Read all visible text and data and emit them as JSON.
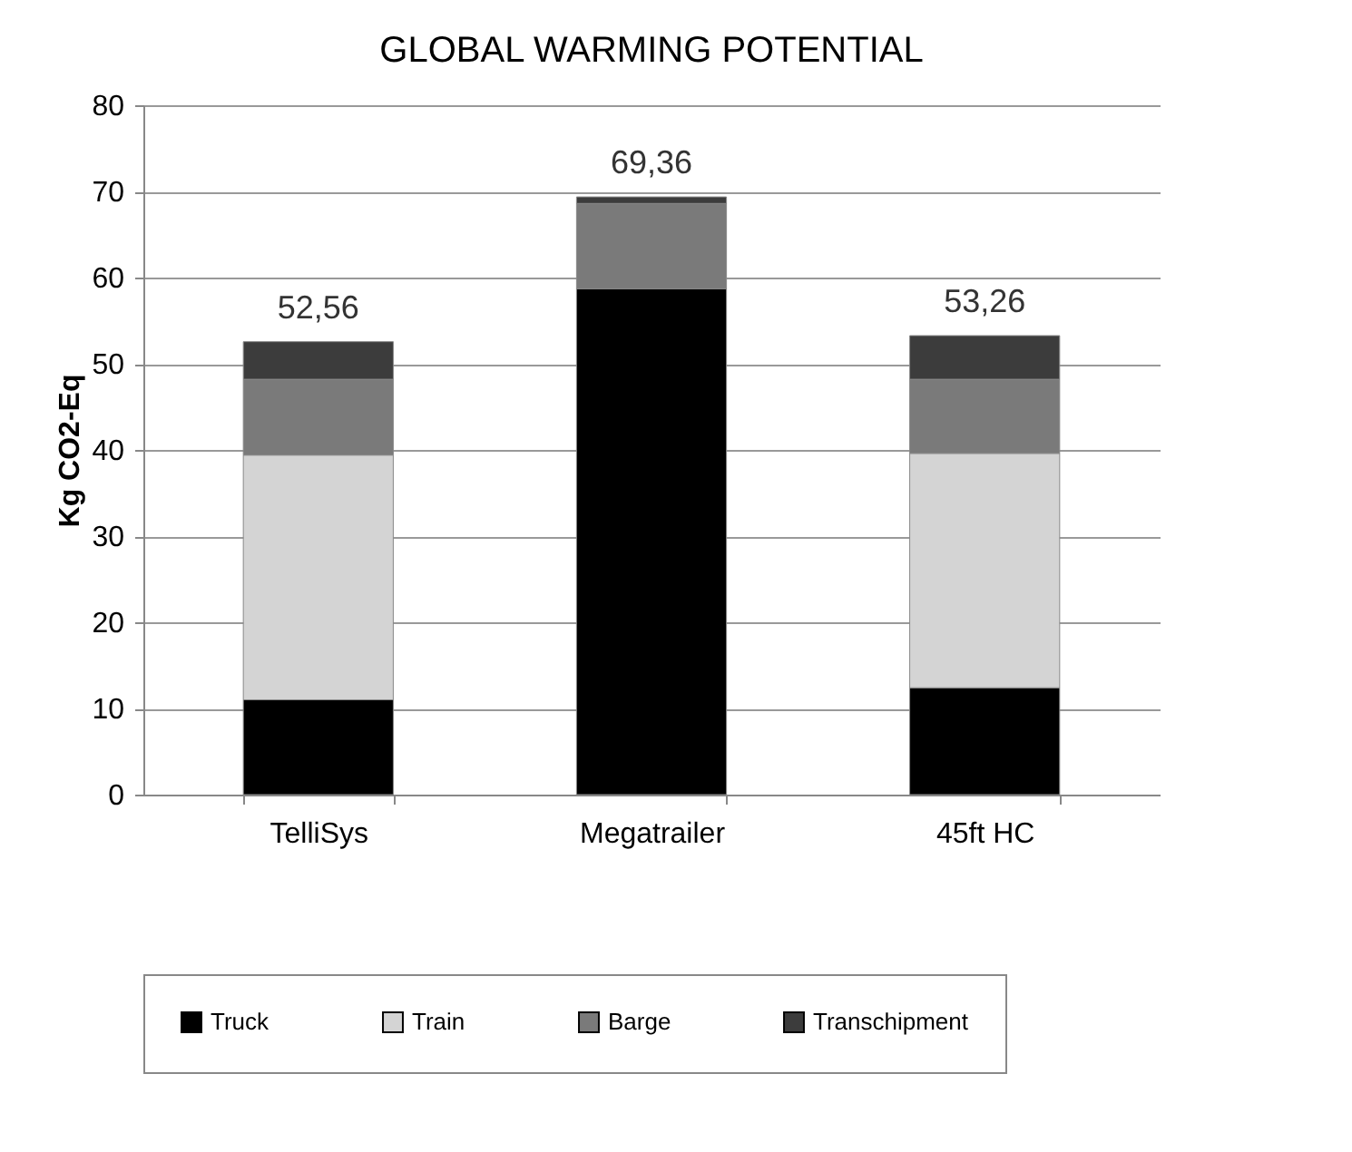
{
  "chart_data": {
    "type": "bar",
    "title": "GLOBAL WARMING POTENTIAL",
    "ylabel": "Kg CO2-Eq",
    "categories": [
      "TelliSys",
      "Megatrailer",
      "45ft HC"
    ],
    "series": [
      {
        "name": "Truck",
        "color": "#000000",
        "values": [
          11,
          58.7,
          12.4
        ]
      },
      {
        "name": "Train",
        "color": "#d4d4d4",
        "values": [
          28.4,
          0,
          27.2
        ]
      },
      {
        "name": "Barge",
        "color": "#7a7a7a",
        "values": [
          8.8,
          9.9,
          8.6
        ]
      },
      {
        "name": "Transchipment",
        "color": "#3c3c3c",
        "values": [
          4.36,
          0.76,
          5.06
        ]
      }
    ],
    "stacked": true,
    "totals": [
      "52,56",
      "69,36",
      "53,26"
    ],
    "ylim": [
      0,
      80
    ],
    "yticks": [
      0,
      10,
      20,
      30,
      40,
      50,
      60,
      70,
      80
    ],
    "grid": "y",
    "legend": "bottom"
  }
}
